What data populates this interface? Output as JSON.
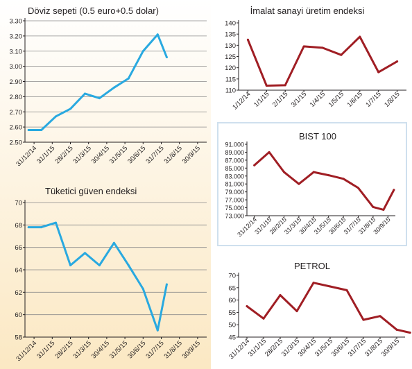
{
  "colors": {
    "left_line": "#29a9e0",
    "right_line": "#a01e24",
    "grid": "#8a8a8a",
    "axis": "#231f20",
    "bg_top": "#ffffff",
    "bg_bottom": "#fbe8c3",
    "bist_border": "#cfe0ee"
  },
  "chart_data": [
    {
      "id": "doviz",
      "type": "line",
      "title": "Döviz sepeti (0.5 euro+0.5 dolar)",
      "categories": [
        "31/12/14",
        "31/1/15",
        "28/2/15",
        "31/3/15",
        "30/4/15",
        "31/5/15",
        "30/6/15",
        "31/7/15",
        "31/8/15",
        "30/9/15"
      ],
      "x": [
        -0.3,
        0.4,
        1.2,
        2.0,
        2.8,
        3.6,
        4.4,
        5.2,
        6.0,
        6.8,
        7.3
      ],
      "values": [
        2.58,
        2.58,
        2.67,
        2.72,
        2.82,
        2.79,
        2.86,
        2.92,
        3.1,
        3.21,
        3.06
      ],
      "ylim": [
        2.5,
        3.3
      ],
      "yticks": [
        "2.50",
        "2.60",
        "2.70",
        "2.80",
        "2.90",
        "3.00",
        "3.10",
        "3.20",
        "3.30"
      ],
      "grid": true,
      "color": "left_line"
    },
    {
      "id": "tuketici",
      "type": "line",
      "title": "Tüketici güven endeksi",
      "categories": [
        "31/12/14",
        "31/1/15",
        "28/2/15",
        "31/3/15",
        "30/4/15",
        "31/5/15",
        "30/6/15",
        "31/7/15",
        "31/8/15",
        "30/9/15"
      ],
      "x": [
        -0.3,
        0.4,
        1.2,
        2.0,
        2.8,
        3.6,
        4.4,
        5.2,
        6.0,
        6.8,
        7.3
      ],
      "values": [
        67.8,
        67.8,
        68.2,
        64.4,
        65.5,
        64.4,
        66.4,
        64.4,
        62.3,
        58.6,
        62.7
      ],
      "ylim": [
        58,
        70
      ],
      "yticks": [
        "58",
        "60",
        "62",
        "64",
        "66",
        "68",
        "70"
      ],
      "grid": true,
      "color": "left_line"
    },
    {
      "id": "imalat",
      "type": "line",
      "title": "İmalat sanayi üretim endeksi",
      "categories": [
        "1/12/14",
        "1/1/15",
        "2/1/15",
        "3/1/15",
        "1/4/15",
        "1/5/15",
        "1/6/15",
        "1/7/15",
        "1/8/15"
      ],
      "x": [
        0,
        1,
        2,
        3,
        4,
        5,
        6,
        7,
        8
      ],
      "values": [
        132.5,
        112,
        112.2,
        129.5,
        128.9,
        125.7,
        133.8,
        118,
        122.8
      ],
      "ylim": [
        110,
        140
      ],
      "yticks": [
        "110",
        "115",
        "120",
        "125",
        "130",
        "135",
        "140"
      ],
      "grid": false,
      "color": "right_line"
    },
    {
      "id": "bist",
      "type": "line",
      "title": "BIST 100",
      "categories": [
        "31/12/14",
        "31/1/15",
        "28/2/15",
        "31/3/15",
        "30/4/15",
        "31/5/15",
        "30/6/15",
        "31/7/15",
        "31/8/15",
        "30/9/15"
      ],
      "x": [
        0,
        1,
        2,
        3,
        4,
        5,
        6,
        7,
        8,
        8.7,
        9.4
      ],
      "values": [
        85.7,
        89.0,
        84.0,
        81.0,
        84.0,
        83.2,
        82.3,
        80.0,
        75.2,
        74.5,
        79.5
      ],
      "ylim": [
        73,
        91
      ],
      "yticks": [
        "73.000",
        "75.000",
        "77.000",
        "79.000",
        "81.000",
        "83.000",
        "85.000",
        "87.000",
        "89.000",
        "91.000"
      ],
      "grid": false,
      "color": "right_line"
    },
    {
      "id": "petrol",
      "type": "line",
      "title": "PETROL",
      "categories": [
        "31/12/14",
        "31/1/15",
        "28/2/15",
        "31/3/15",
        "30/4/15",
        "31/5/15",
        "30/6/15",
        "31/7/15",
        "31/8/15",
        "30/9/15"
      ],
      "x": [
        0,
        1,
        2,
        3,
        4,
        5,
        6,
        7,
        8,
        9,
        9.8
      ],
      "values": [
        57.5,
        52.5,
        62.0,
        55.5,
        67.0,
        65.5,
        64.0,
        52.0,
        53.5,
        48.0,
        46.8
      ],
      "ylim": [
        45,
        70
      ],
      "yticks": [
        "45",
        "50",
        "55",
        "60",
        "65",
        "70"
      ],
      "grid": false,
      "color": "right_line"
    }
  ]
}
